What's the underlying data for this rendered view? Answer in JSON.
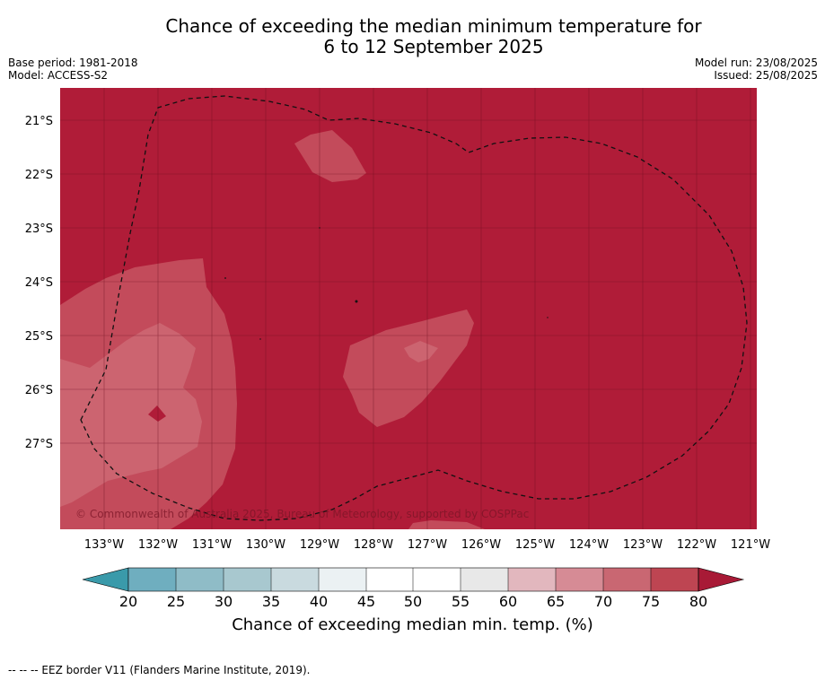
{
  "title_line1": "Chance of exceeding the median minimum temperature for",
  "title_line2": "6 to 12 September 2025",
  "meta_left": {
    "base_period": "Base period: 1981-2018",
    "model": "Model: ACCESS-S2"
  },
  "meta_right": {
    "model_run": "Model run: 23/08/2025",
    "issued": "Issued: 25/08/2025"
  },
  "map": {
    "lat_labels": [
      "21°S",
      "22°S",
      "23°S",
      "24°S",
      "25°S",
      "26°S",
      "27°S"
    ],
    "lon_labels": [
      "133°W",
      "132°W",
      "131°W",
      "130°W",
      "129°W",
      "128°W",
      "127°W",
      "126°W",
      "125°W",
      "124°W",
      "123°W",
      "122°W",
      "121°W"
    ],
    "copyright": "© Commonwealth of Australia 2025, Bureau of Meteorology, supported by COSPPac",
    "colors": {
      "gt80": "#b01c38",
      "c75_80": "#c34b5b",
      "c70_75": "#cc6470"
    }
  },
  "colorbar": {
    "ticks": [
      "20",
      "25",
      "30",
      "35",
      "40",
      "45",
      "50",
      "55",
      "60",
      "65",
      "70",
      "75",
      "80"
    ],
    "colors": [
      "#3a9aaa",
      "#6faebf",
      "#8fbcc7",
      "#a8c8cf",
      "#c9dadf",
      "#ebf1f3",
      "#ffffff",
      "#ffffff",
      "#e8e8e8",
      "#e2b7be",
      "#d68b95",
      "#c96772",
      "#be4552",
      "#a81a36"
    ],
    "label": "Chance of exceeding median min. temp. (%)"
  },
  "footnote": "--  --  -- EEZ border V11 (Flanders Marine Institute, 2019)."
}
